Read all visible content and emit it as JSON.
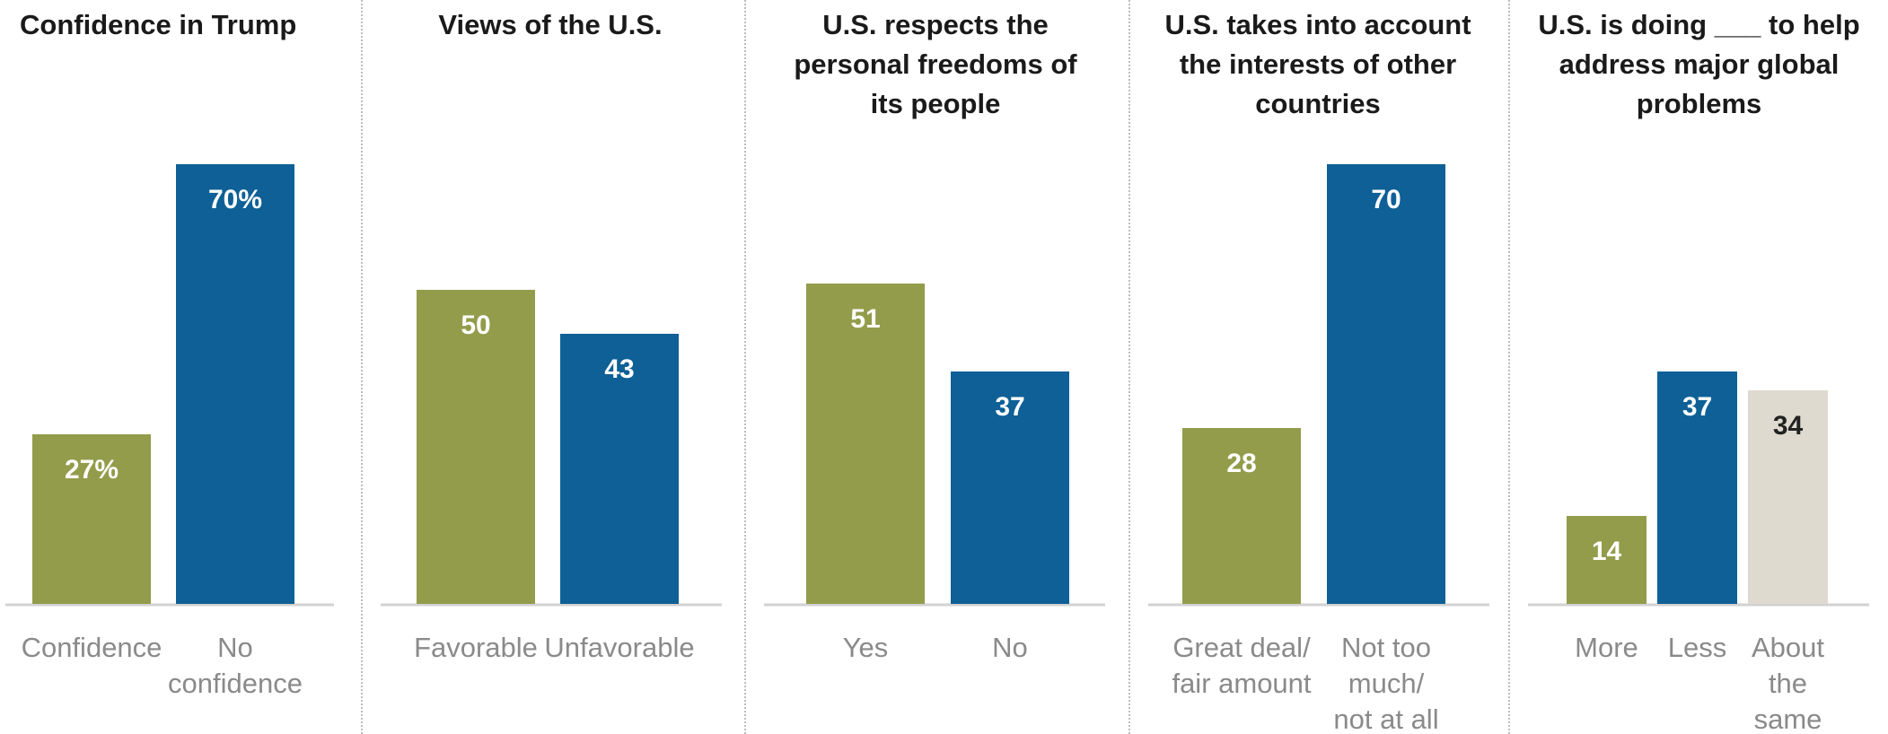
{
  "colors": {
    "green": "#939c4a",
    "blue": "#0e6096",
    "beige": "#dedad0",
    "baseline": "#d2d2d2",
    "label_light": "#ffffff",
    "label_dark": "#222222"
  },
  "chart_data": [
    {
      "type": "bar",
      "title": "Confidence in Trump",
      "categories": [
        "Confidence",
        "No\nconfidence"
      ],
      "values": [
        27,
        70
      ],
      "value_labels": [
        "27%",
        "70%"
      ],
      "colors": [
        "green",
        "blue"
      ],
      "ylim": [
        0,
        100
      ],
      "grid": false
    },
    {
      "type": "bar",
      "title": "Views of the U.S.",
      "categories": [
        "Favorable",
        "Unfavorable"
      ],
      "values": [
        50,
        43
      ],
      "value_labels": [
        "50",
        "43"
      ],
      "colors": [
        "green",
        "blue"
      ],
      "ylim": [
        0,
        100
      ],
      "grid": false
    },
    {
      "type": "bar",
      "title": "U.S. respects the\npersonal freedoms of\nits people",
      "categories": [
        "Yes",
        "No"
      ],
      "values": [
        51,
        37
      ],
      "value_labels": [
        "51",
        "37"
      ],
      "colors": [
        "green",
        "blue"
      ],
      "ylim": [
        0,
        100
      ],
      "grid": false
    },
    {
      "type": "bar",
      "title": "U.S. takes into account\nthe interests of other\ncountries",
      "categories": [
        "Great deal/\nfair amount",
        "Not too\nmuch/\nnot at all"
      ],
      "values": [
        28,
        70
      ],
      "value_labels": [
        "28",
        "70"
      ],
      "colors": [
        "green",
        "blue"
      ],
      "ylim": [
        0,
        100
      ],
      "grid": false
    },
    {
      "type": "bar",
      "title": "U.S. is doing ___ to help\naddress major global\nproblems",
      "categories": [
        "More",
        "Less",
        "About\nthe\nsame"
      ],
      "values": [
        14,
        37,
        34
      ],
      "value_labels": [
        "14",
        "37",
        "34"
      ],
      "colors": [
        "green",
        "blue",
        "beige"
      ],
      "ylim": [
        0,
        100
      ],
      "grid": false
    }
  ]
}
